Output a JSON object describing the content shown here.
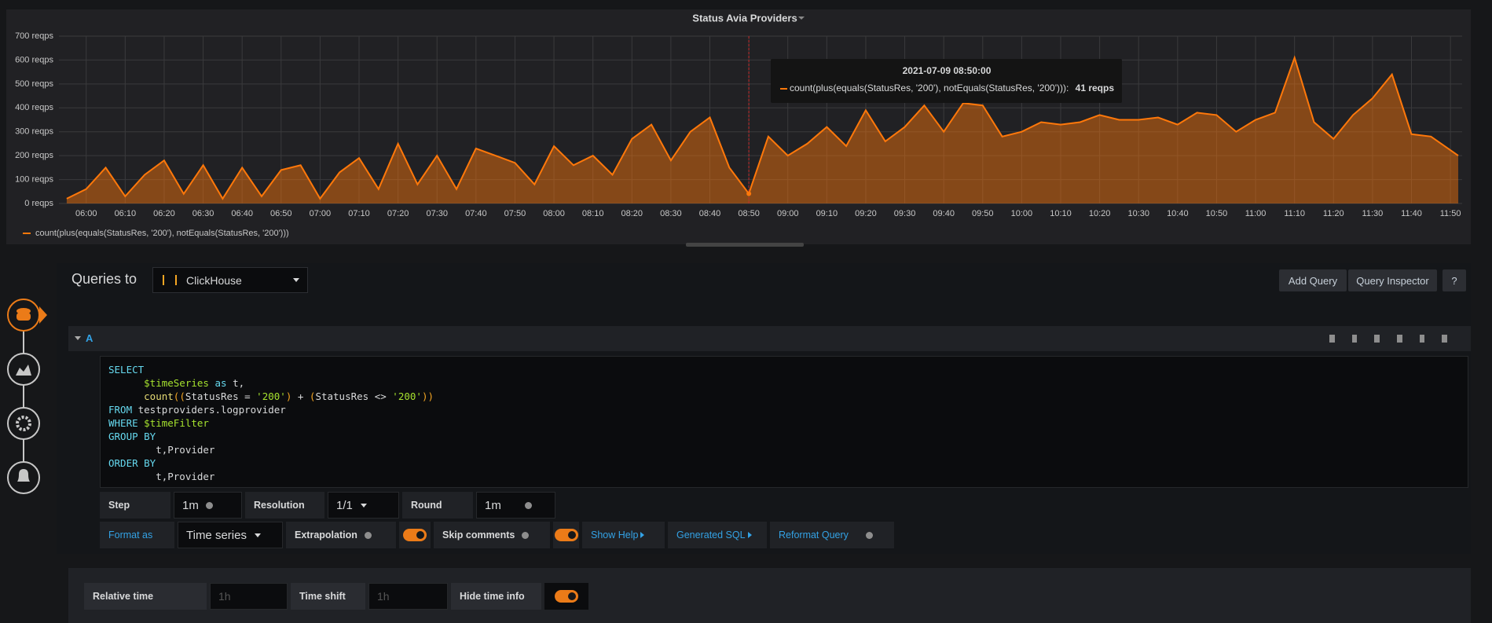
{
  "chart_data": {
    "type": "line",
    "title": "Status Avia Providers",
    "x": [
      "05:55",
      "06:00",
      "06:05",
      "06:10",
      "06:15",
      "06:20",
      "06:25",
      "06:30",
      "06:35",
      "06:40",
      "06:45",
      "06:50",
      "06:55",
      "07:00",
      "07:05",
      "07:10",
      "07:15",
      "07:20",
      "07:25",
      "07:30",
      "07:35",
      "07:40",
      "07:45",
      "07:50",
      "07:55",
      "08:00",
      "08:05",
      "08:10",
      "08:15",
      "08:20",
      "08:25",
      "08:30",
      "08:35",
      "08:40",
      "08:45",
      "08:50",
      "08:55",
      "09:00",
      "09:05",
      "09:10",
      "09:15",
      "09:20",
      "09:25",
      "09:30",
      "09:35",
      "09:40",
      "09:45",
      "09:50",
      "09:55",
      "10:00",
      "10:05",
      "10:10",
      "10:15",
      "10:20",
      "10:25",
      "10:30",
      "10:35",
      "10:40",
      "10:45",
      "10:50",
      "10:55",
      "11:00",
      "11:05",
      "11:10",
      "11:15",
      "11:20",
      "11:25",
      "11:30",
      "11:35",
      "11:40",
      "11:45",
      "11:52"
    ],
    "series": [
      {
        "name": "count(plus(equals(StatusRes, '200'), notEquals(StatusRes, '200')))",
        "color": "#ff780a",
        "values": [
          20,
          60,
          150,
          30,
          120,
          180,
          40,
          160,
          20,
          150,
          30,
          140,
          160,
          20,
          130,
          190,
          60,
          250,
          80,
          200,
          60,
          230,
          200,
          170,
          80,
          240,
          160,
          200,
          120,
          270,
          330,
          180,
          300,
          360,
          150,
          41,
          280,
          200,
          250,
          320,
          240,
          390,
          260,
          320,
          410,
          300,
          420,
          410,
          280,
          300,
          340,
          330,
          340,
          370,
          350,
          350,
          360,
          330,
          380,
          370,
          300,
          350,
          380,
          610,
          340,
          270,
          370,
          440,
          540,
          290,
          280,
          200
        ]
      }
    ],
    "xlim": [
      "05:53",
      "11:53"
    ],
    "xticks": [
      "06:00",
      "06:10",
      "06:20",
      "06:30",
      "06:40",
      "06:50",
      "07:00",
      "07:10",
      "07:20",
      "07:30",
      "07:40",
      "07:50",
      "08:00",
      "08:10",
      "08:20",
      "08:30",
      "08:40",
      "08:50",
      "09:00",
      "09:10",
      "09:20",
      "09:30",
      "09:40",
      "09:50",
      "10:00",
      "10:10",
      "10:20",
      "10:30",
      "10:40",
      "10:50",
      "11:00",
      "11:10",
      "11:20",
      "11:30",
      "11:40",
      "11:50"
    ],
    "ylim": [
      0,
      700
    ],
    "yticks": [
      {
        "value": 0,
        "label": "0 reqps"
      },
      {
        "value": 100,
        "label": "100 reqps"
      },
      {
        "value": 200,
        "label": "200 reqps"
      },
      {
        "value": 300,
        "label": "300 reqps"
      },
      {
        "value": 400,
        "label": "400 reqps"
      },
      {
        "value": 500,
        "label": "500 reqps"
      },
      {
        "value": 600,
        "label": "600 reqps"
      },
      {
        "value": 700,
        "label": "700 reqps"
      }
    ],
    "grid": true,
    "fill": true,
    "tooltip": {
      "time": "2021-07-09 08:50:00",
      "series": "count(plus(equals(StatusRes, '200'), notEquals(StatusRes, '200'))):",
      "value": 41,
      "value_label": "41 reqps"
    }
  },
  "editor": {
    "queries_to": "Queries to",
    "datasource": "ClickHouse",
    "buttons": [
      "Add Query",
      "Query Inspector",
      "?"
    ],
    "query": {
      "ref": "A",
      "lines": [
        "SELECT",
        "      $timeSeries as t,",
        "      count((StatusRes = '200') + (StatusRes <> '200'))",
        "FROM testproviders.logprovider",
        "WHERE $timeFilter",
        "GROUP BY",
        "        t,Provider",
        "ORDER BY",
        "        t,Provider"
      ]
    },
    "step_label": "Step",
    "step": "1m",
    "resolution_label": "Resolution",
    "resolution": "1/1",
    "round_label": "Round",
    "round": "1m",
    "format_label": "Format as",
    "format": "Time series",
    "extrapolation": "Extrapolation",
    "skip_comments": "Skip comments",
    "show_help": "Show Help",
    "generated_sql": "Generated SQL",
    "reformat": "Reformat Query"
  },
  "options": {
    "relative_time": "Relative time",
    "relative_placeholder": "1h",
    "time_shift": "Time shift",
    "shift_placeholder": "1h",
    "hide_time_info": "Hide time info"
  }
}
